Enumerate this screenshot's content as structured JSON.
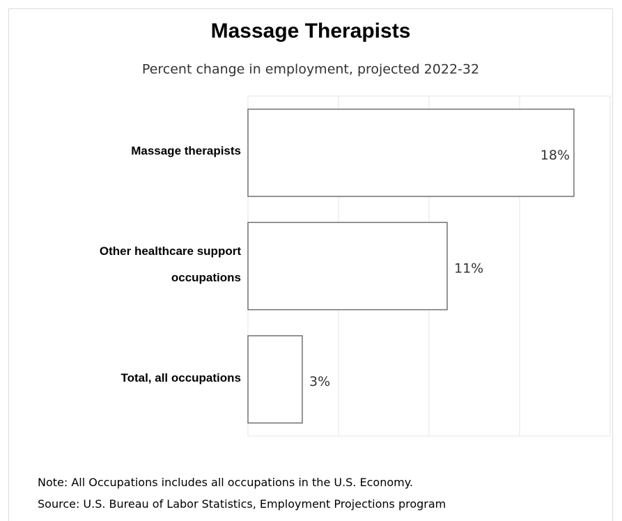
{
  "chart_data": {
    "type": "bar",
    "orientation": "horizontal",
    "title": "Massage Therapists",
    "subtitle": "Percent change in employment, projected 2022-32",
    "categories": [
      "Massage therapists",
      "Other healthcare support occupations",
      "Total, all occupations"
    ],
    "values": [
      18,
      11,
      3
    ],
    "value_labels": [
      "18%",
      "11%",
      "3%"
    ],
    "color": "#ffffff",
    "edge_color": "#707070",
    "xlim": [
      0,
      20
    ],
    "xticks": [
      0,
      5,
      10,
      15,
      20
    ],
    "grid": true,
    "notes": [
      "Note: All Occupations includes all occupations in the U.S. Economy.",
      "Source: U.S. Bureau of Labor Statistics, Employment Projections program"
    ]
  }
}
